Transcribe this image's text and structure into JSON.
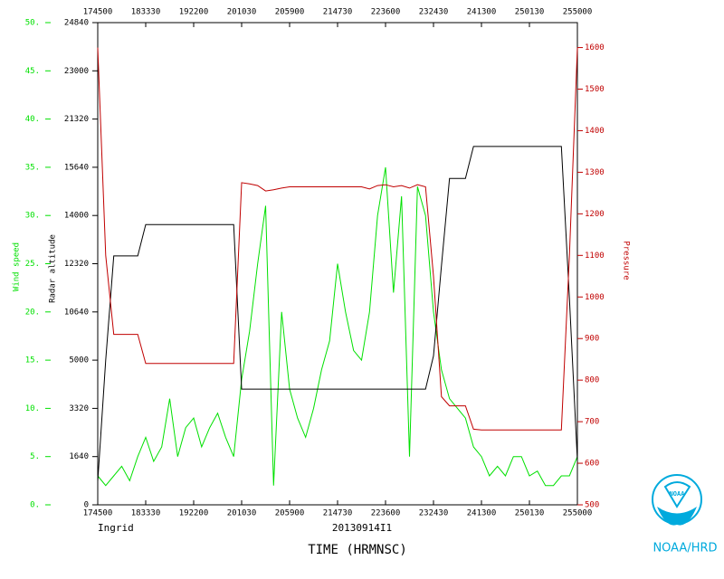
{
  "chart_data": {
    "type": "line",
    "storm": "Ingrid",
    "flight": "20130914I1",
    "xlabel": "TIME (HRMNSC)",
    "xlim": [
      63900,
      93000
    ],
    "xticks": [
      {
        "value": 63900,
        "label": "174500"
      },
      {
        "value": 66810,
        "label": "183330"
      },
      {
        "value": 69720,
        "label": "192200"
      },
      {
        "value": 72630,
        "label": "201030"
      },
      {
        "value": 75540,
        "label": "205900"
      },
      {
        "value": 78450,
        "label": "214730"
      },
      {
        "value": 81360,
        "label": "223600"
      },
      {
        "value": 84270,
        "label": "232430"
      },
      {
        "value": 87180,
        "label": "241300"
      },
      {
        "value": 90090,
        "label": "250130"
      },
      {
        "value": 93000,
        "label": "255000"
      }
    ],
    "ylim": [
      0,
      50
    ],
    "yticks": [
      {
        "value": 0,
        "label": "0."
      },
      {
        "value": 5,
        "label": "5."
      },
      {
        "value": 10,
        "label": "10."
      },
      {
        "value": 15,
        "label": "15."
      },
      {
        "value": 20,
        "label": "20."
      },
      {
        "value": 25,
        "label": "25."
      },
      {
        "value": 30,
        "label": "30."
      },
      {
        "value": 35,
        "label": "35."
      },
      {
        "value": 40,
        "label": "40."
      },
      {
        "value": 45,
        "label": "45."
      },
      {
        "value": 50,
        "label": "50."
      }
    ],
    "y3lim": [
      0,
      24840
    ],
    "y3ticks": [
      0,
      1640,
      3320,
      5000,
      10640,
      12320,
      14000,
      15640,
      21320,
      23000,
      24840
    ],
    "y2lim": [
      500,
      1660
    ],
    "y2ticks": [
      500,
      600,
      700,
      800,
      900,
      1000,
      1100,
      1200,
      1300,
      1400,
      1500,
      1600
    ],
    "x": [
      63900,
      64385,
      64870,
      65355,
      65840,
      66325,
      66810,
      67295,
      67780,
      68265,
      68750,
      69235,
      69720,
      70205,
      70690,
      71175,
      71660,
      72145,
      72630,
      73115,
      73600,
      74085,
      74570,
      75055,
      75540,
      76025,
      76510,
      76995,
      77480,
      77965,
      78450,
      78935,
      79420,
      79905,
      80390,
      80875,
      81360,
      81845,
      82330,
      82815,
      83300,
      83785,
      84270,
      84755,
      85240,
      85725,
      86210,
      86695,
      87180,
      87665,
      88150,
      88635,
      89120,
      89605,
      90090,
      90575,
      91060,
      91545,
      92030,
      92515,
      93000
    ],
    "series": [
      {
        "name": "Wind speed",
        "color": "#00e000",
        "axis": "y",
        "values": [
          3,
          2,
          3,
          4,
          2.5,
          5,
          7,
          4.5,
          6,
          11,
          5,
          8,
          9,
          6,
          8,
          9.5,
          7,
          5,
          13,
          18,
          25,
          31,
          2,
          20,
          12,
          9,
          7,
          10,
          14,
          17,
          25,
          20,
          16,
          15,
          20,
          30,
          35,
          22,
          32,
          5,
          33,
          30,
          20,
          14,
          11,
          10,
          9,
          6,
          5,
          3,
          4,
          3,
          5,
          5,
          3,
          3.5,
          2,
          2,
          3,
          3,
          5
        ]
      },
      {
        "name": "Radar altitude",
        "color": "#000000",
        "axis": "y3",
        "values": [
          800,
          5000,
          12590,
          12590,
          12590,
          12590,
          13685,
          13685,
          13685,
          13685,
          13685,
          13685,
          13685,
          13685,
          13685,
          13685,
          13685,
          13685,
          3990,
          3990,
          3990,
          3990,
          3990,
          3990,
          3990,
          3990,
          3990,
          3990,
          3990,
          3990,
          3990,
          3990,
          3990,
          3990,
          3990,
          3990,
          3990,
          3990,
          3990,
          3990,
          3990,
          3990,
          5500,
          12250,
          15260,
          15260,
          15260,
          18090,
          18090,
          18090,
          18090,
          18090,
          18090,
          18090,
          18090,
          18090,
          18090,
          18090,
          18090,
          11110,
          1500
        ]
      },
      {
        "name": "Pressure",
        "color": "#c00000",
        "axis": "y2",
        "values": [
          1600,
          1100,
          910,
          910,
          910,
          910,
          840,
          840,
          840,
          840,
          840,
          840,
          840,
          840,
          840,
          840,
          840,
          840,
          1275,
          1272,
          1268,
          1255,
          1258,
          1262,
          1265,
          1265,
          1265,
          1265,
          1265,
          1265,
          1265,
          1265,
          1265,
          1265,
          1260,
          1268,
          1270,
          1265,
          1268,
          1262,
          1270,
          1265,
          1050,
          760,
          738,
          738,
          738,
          682,
          680,
          680,
          680,
          680,
          680,
          680,
          680,
          680,
          680,
          680,
          680,
          1100,
          1600
        ]
      }
    ]
  },
  "logo": {
    "mark": "NOAA",
    "label": "NOAA/HRD"
  }
}
